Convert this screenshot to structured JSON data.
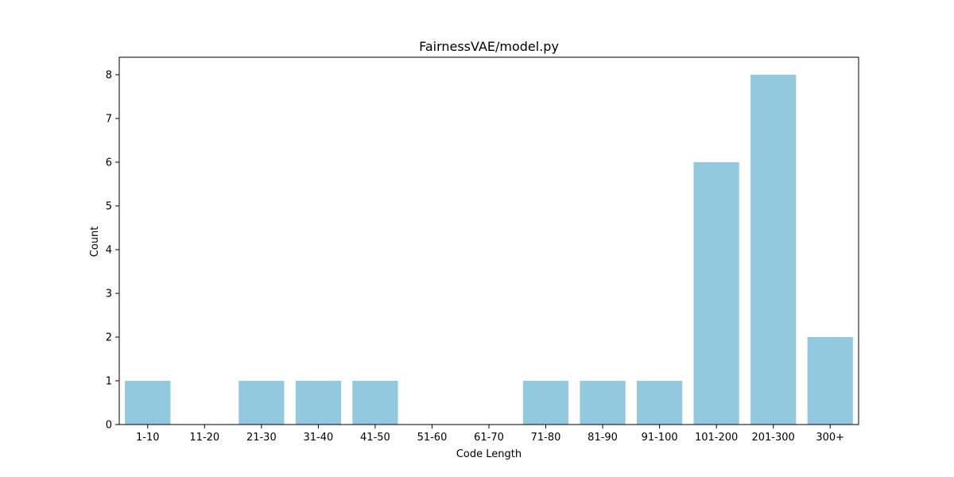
{
  "chart_data": {
    "type": "bar",
    "title": "FairnessVAE/model.py",
    "xlabel": "Code Length",
    "ylabel": "Count",
    "categories": [
      "1-10",
      "11-20",
      "21-30",
      "31-40",
      "41-50",
      "51-60",
      "61-70",
      "71-80",
      "81-90",
      "91-100",
      "101-200",
      "201-300",
      "300+"
    ],
    "values": [
      1,
      0,
      1,
      1,
      1,
      0,
      0,
      1,
      1,
      1,
      6,
      8,
      2
    ],
    "ylim": [
      0,
      8.4
    ],
    "yticks": [
      0,
      1,
      2,
      3,
      4,
      5,
      6,
      7,
      8
    ],
    "grid": false,
    "bar_color": "#92c9df"
  }
}
